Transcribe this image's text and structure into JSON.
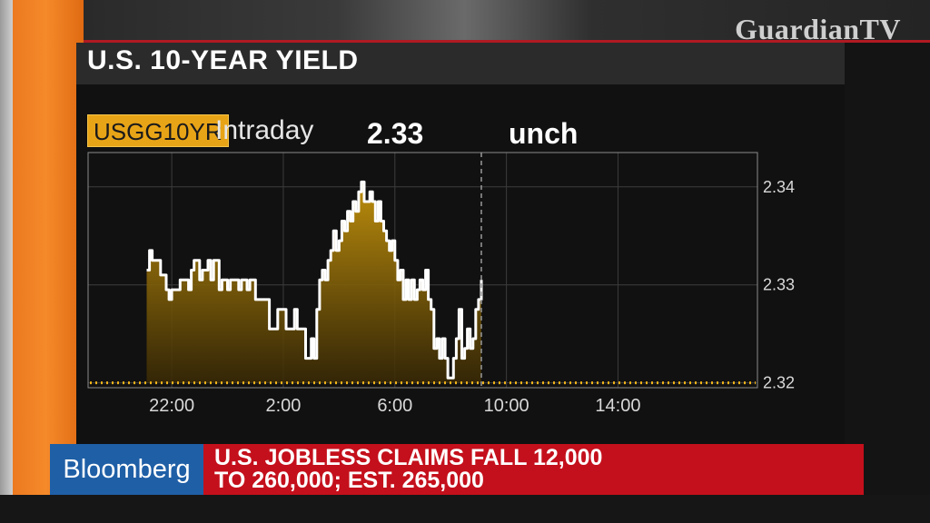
{
  "logo": "GuardianTV",
  "title": "U.S. 10-YEAR YIELD",
  "ticker": "USGG10YR",
  "period": "Intraday",
  "last_value": "2.33",
  "change": "unch",
  "lower_third": {
    "brand": "Bloomberg",
    "headline_line1": "U.S. JOBLESS CLAIMS FALL 12,000",
    "headline_line2": "TO 260,000; EST. 265,000"
  },
  "colors": {
    "ticker_bg": "#e8a417",
    "area_fill": "#b8860b",
    "line": "#ffffff",
    "dotted_baseline": "#f0b21a",
    "headline_bg": "#c4101c",
    "brand_bg": "#1f5fa6",
    "orange": "#f58a2a"
  },
  "chart_data": {
    "type": "area",
    "xlim": [
      19,
      43
    ],
    "ylim": [
      2.3195,
      2.3435
    ],
    "x_ticks": [
      22,
      26,
      30,
      34,
      38
    ],
    "x_tick_labels": [
      "22:00",
      "2:00",
      "6:00",
      "10:00",
      "14:00"
    ],
    "y_ticks": [
      2.32,
      2.33,
      2.34
    ],
    "y_tick_labels": [
      "2.32",
      "2.33",
      "2.34"
    ],
    "baseline": 2.32,
    "current_time": 33.1,
    "grid": true,
    "x": [
      21.1,
      21.2,
      21.3,
      21.5,
      21.6,
      21.8,
      21.9,
      22.0,
      22.1,
      22.3,
      22.4,
      22.6,
      22.7,
      22.8,
      23.0,
      23.1,
      23.3,
      23.4,
      23.5,
      23.7,
      23.8,
      24.0,
      24.1,
      24.2,
      24.4,
      24.5,
      24.7,
      24.8,
      25.0,
      25.1,
      25.2,
      25.4,
      25.5,
      25.7,
      25.8,
      25.9,
      26.1,
      26.2,
      26.4,
      26.5,
      26.6,
      26.8,
      26.9,
      27.0,
      27.1,
      27.2,
      27.3,
      27.4,
      27.5,
      27.6,
      27.7,
      27.8,
      27.9,
      28.0,
      28.1,
      28.2,
      28.3,
      28.4,
      28.5,
      28.6,
      28.7,
      28.8,
      28.9,
      29.0,
      29.1,
      29.2,
      29.3,
      29.4,
      29.5,
      29.6,
      29.7,
      29.8,
      29.9,
      30.0,
      30.1,
      30.2,
      30.3,
      30.4,
      30.5,
      30.6,
      30.7,
      30.8,
      30.9,
      31.0,
      31.1,
      31.2,
      31.3,
      31.4,
      31.5,
      31.6,
      31.7,
      31.8,
      31.9,
      32.0,
      32.1,
      32.2,
      32.3,
      32.4,
      32.5,
      32.6,
      32.7,
      32.8,
      32.9,
      33.0,
      33.1
    ],
    "y": [
      2.3315,
      2.3335,
      2.3325,
      2.3325,
      2.331,
      2.3295,
      2.3285,
      2.3295,
      2.3295,
      2.3305,
      2.3305,
      2.3295,
      2.3315,
      2.3325,
      2.3305,
      2.3315,
      2.3325,
      2.3305,
      2.3325,
      2.3295,
      2.3305,
      2.3295,
      2.3305,
      2.3305,
      2.3295,
      2.3305,
      2.3295,
      2.3305,
      2.3285,
      2.3285,
      2.3285,
      2.3285,
      2.3255,
      2.3255,
      2.3275,
      2.3275,
      2.3255,
      2.3255,
      2.3275,
      2.3255,
      2.3255,
      2.3225,
      2.3225,
      2.3245,
      2.3225,
      2.3275,
      2.3305,
      2.3315,
      2.3305,
      2.3325,
      2.3335,
      2.3355,
      2.3335,
      2.3345,
      2.3365,
      2.3355,
      2.3375,
      2.3365,
      2.3385,
      2.3375,
      2.3395,
      2.3405,
      2.3385,
      2.3385,
      2.3395,
      2.3385,
      2.3365,
      2.3385,
      2.3365,
      2.3355,
      2.3345,
      2.3335,
      2.3345,
      2.3325,
      2.3305,
      2.3315,
      2.3285,
      2.3305,
      2.3285,
      2.3305,
      2.3285,
      2.3295,
      2.3305,
      2.3295,
      2.3315,
      2.3285,
      2.3275,
      2.3235,
      2.3245,
      2.3225,
      2.3245,
      2.3225,
      2.3205,
      2.3205,
      2.3225,
      2.3245,
      2.3275,
      2.3225,
      2.3235,
      2.3255,
      2.3235,
      2.3245,
      2.3275,
      2.3285,
      2.3305
    ]
  }
}
